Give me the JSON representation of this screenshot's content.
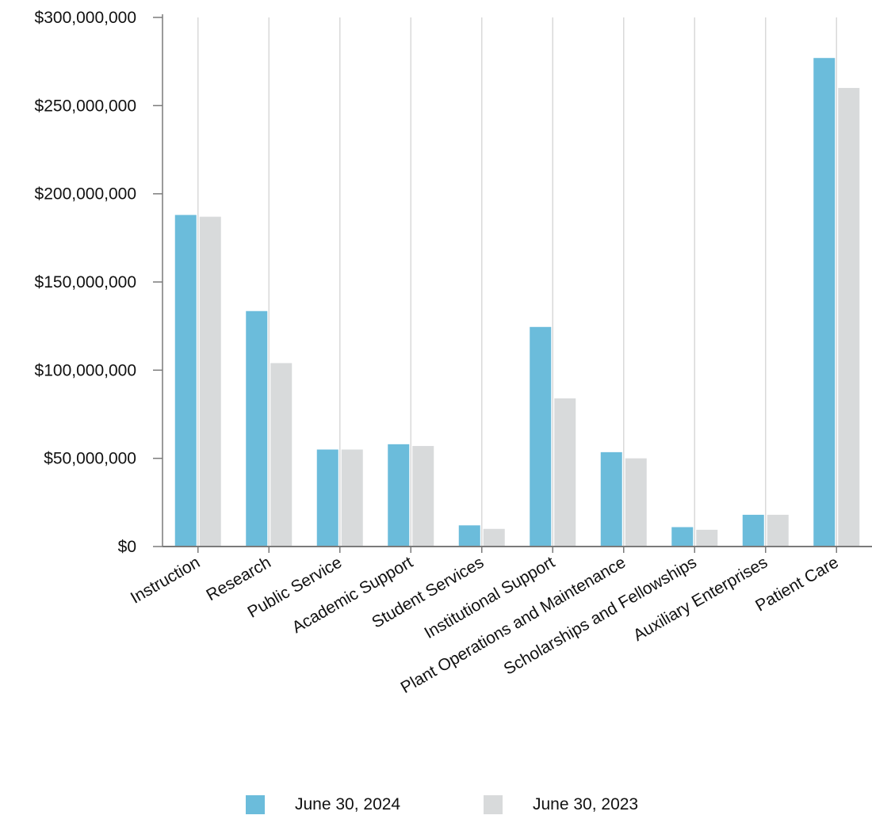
{
  "chart_data": {
    "type": "bar",
    "categories": [
      "Instruction",
      "Research",
      "Public Service",
      "Academic Support",
      "Student Services",
      "Institutional Support",
      "Plant Operations and Maintenance",
      "Scholarships and Fellowships",
      "Auxiliary Enterprises",
      "Patient Care"
    ],
    "series": [
      {
        "name": "June 30, 2024",
        "color": "#6bbcdb",
        "values": [
          188000000,
          133500000,
          55000000,
          58000000,
          12000000,
          124500000,
          53500000,
          11000000,
          18000000,
          277000000
        ]
      },
      {
        "name": "June 30, 2023",
        "color": "#d8dadb",
        "values": [
          187000000,
          104000000,
          55000000,
          57000000,
          10000000,
          84000000,
          50000000,
          9500000,
          18000000,
          260000000
        ]
      }
    ],
    "ylim": [
      0,
      300000000
    ],
    "yticks": [
      0,
      50000000,
      100000000,
      150000000,
      200000000,
      250000000,
      300000000
    ],
    "ytick_labels": [
      "$0",
      "$50,000,000",
      "$100,000,000",
      "$150,000,000",
      "$200,000,000",
      "$250,000,000",
      "$300,000,000"
    ],
    "title": "",
    "xlabel": "",
    "ylabel": "",
    "grid": "vertical",
    "legend": "bottom-center",
    "axis_color": "#7a7a7a",
    "grid_color": "#d9d9d9"
  }
}
